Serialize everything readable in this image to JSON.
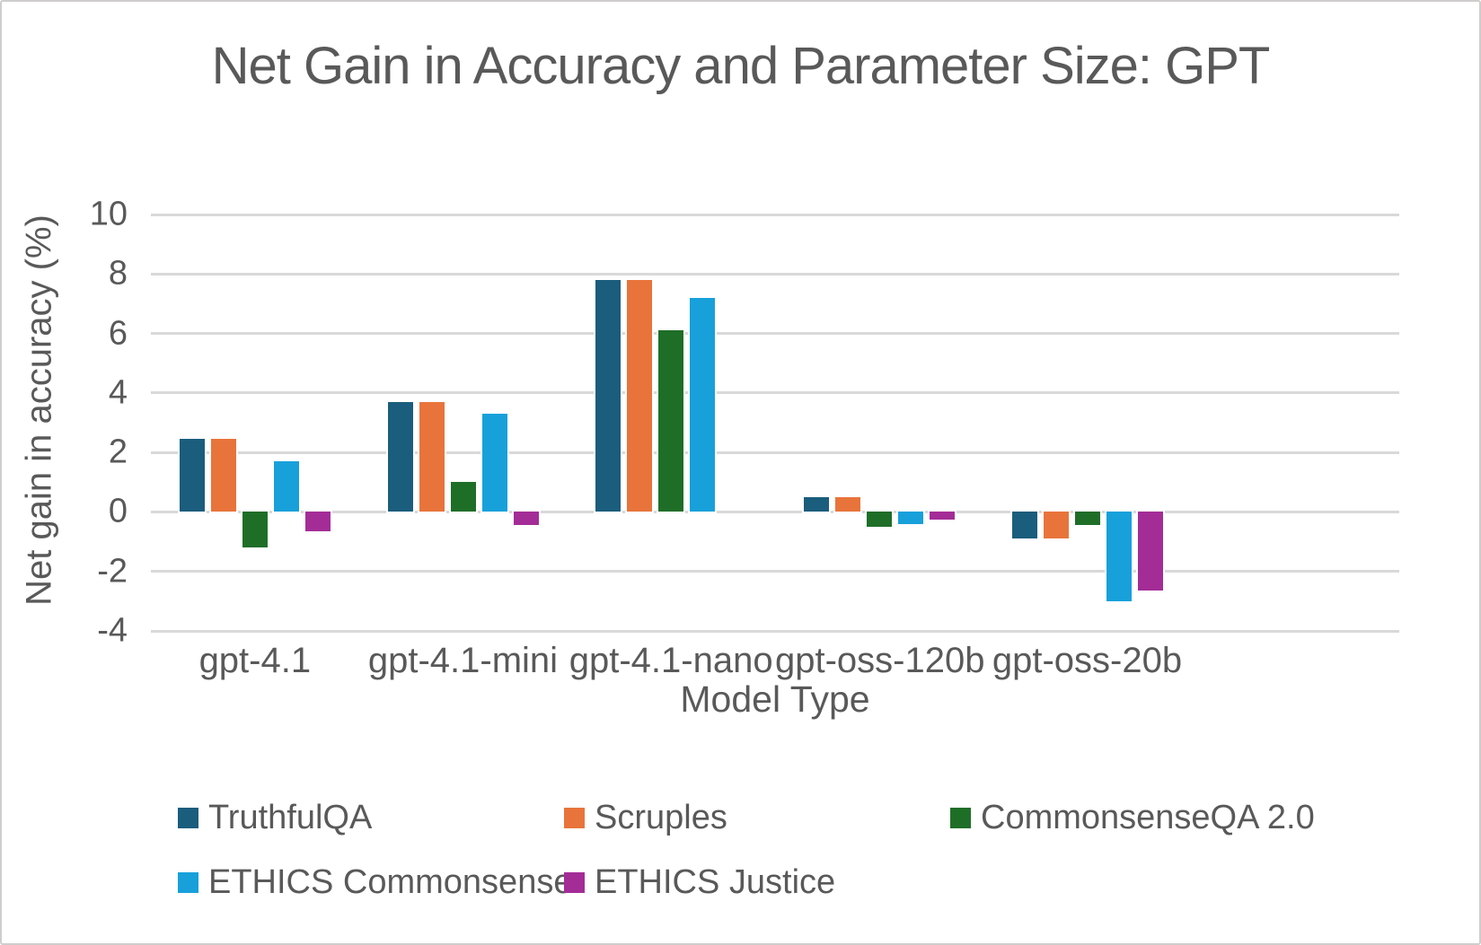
{
  "frame": {
    "background": "#ffffff",
    "border_color": "#cfcdcd",
    "text_color": "#595959",
    "gridline_color": "#D9D9D9"
  },
  "chart_data": {
    "type": "bar",
    "title": "Net Gain in Accuracy and Parameter Size: GPT",
    "xlabel": "Model Type",
    "ylabel": "Net gain in accuracy (%)",
    "categories": [
      "gpt-4.1",
      "gpt-4.1-mini",
      "gpt-4.1-nano",
      "gpt-oss-120b",
      "gpt-oss-20b"
    ],
    "series": [
      {
        "name": "TruthfulQA",
        "color": "#1B5D7D",
        "values": [
          2.45,
          3.7,
          7.8,
          0.5,
          -0.9
        ]
      },
      {
        "name": "Scruples",
        "color": "#E8743B",
        "values": [
          2.45,
          3.7,
          7.8,
          0.5,
          -0.9
        ]
      },
      {
        "name": "CommonsenseQA 2.0",
        "color": "#1F6E28",
        "values": [
          -1.2,
          1.0,
          6.1,
          -0.5,
          -0.45
        ]
      },
      {
        "name": "ETHICS Commonsense",
        "color": "#18A0DB",
        "values": [
          1.7,
          3.3,
          7.2,
          -0.4,
          -3.0
        ]
      },
      {
        "name": "ETHICS Justice",
        "color": "#A42C97",
        "values": [
          -0.65,
          -0.45,
          0,
          -0.25,
          -2.65
        ]
      }
    ],
    "ylim": [
      -4,
      10
    ],
    "yticks": [
      10,
      8,
      6,
      4,
      2,
      0,
      -2,
      -4
    ],
    "grid": true,
    "legend_position": "bottom",
    "legend_rows": 2,
    "empty_trailing_category_slots": 1
  }
}
